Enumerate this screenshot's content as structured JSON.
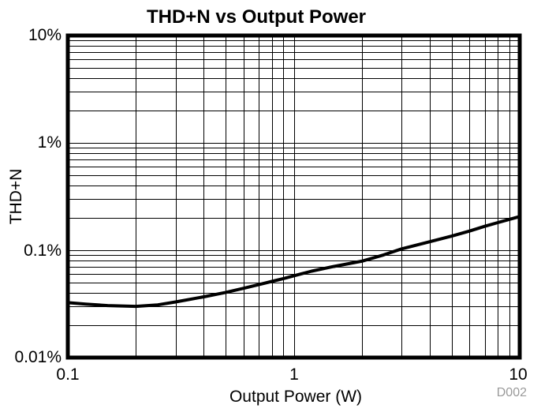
{
  "title": "THD+N vs Output Power",
  "watermark": "D002",
  "colors": {
    "curve": "#000000",
    "grid": "#000000",
    "frame": "#000000",
    "text": "#000000",
    "watermark": "#9a9a9a",
    "background": "#ffffff"
  },
  "chart_data": {
    "type": "line",
    "title": "THD+N vs Output Power",
    "xlabel": "Output Power (W)",
    "ylabel": "THD+N",
    "x_scale": "log",
    "y_scale": "log",
    "xlim": [
      0.1,
      10
    ],
    "ylim": [
      0.01,
      10
    ],
    "y_unit": "percent",
    "grid": "major+minor log grid, both axes, black",
    "legend": "none",
    "annotation": "D002",
    "x_ticks": [
      {
        "value": 0.1,
        "label": "0.1"
      },
      {
        "value": 1,
        "label": "1"
      },
      {
        "value": 10,
        "label": "10"
      }
    ],
    "y_ticks": [
      {
        "value": 10,
        "label": "10%"
      },
      {
        "value": 1,
        "label": "1%"
      },
      {
        "value": 0.1,
        "label": "0.1%"
      },
      {
        "value": 0.01,
        "label": "0.01%"
      }
    ],
    "series": [
      {
        "name": "THD+N",
        "color": "#000000",
        "points": [
          [
            0.1,
            0.0325
          ],
          [
            0.12,
            0.0315
          ],
          [
            0.15,
            0.0305
          ],
          [
            0.2,
            0.03
          ],
          [
            0.25,
            0.031
          ],
          [
            0.3,
            0.033
          ],
          [
            0.4,
            0.0368
          ],
          [
            0.5,
            0.0405
          ],
          [
            0.6,
            0.0442
          ],
          [
            0.7,
            0.0478
          ],
          [
            0.8,
            0.0512
          ],
          [
            0.9,
            0.0545
          ],
          [
            1.0,
            0.0578
          ],
          [
            1.2,
            0.0638
          ],
          [
            1.5,
            0.0705
          ],
          [
            2.0,
            0.079
          ],
          [
            2.5,
            0.0905
          ],
          [
            3.0,
            0.103
          ],
          [
            4.0,
            0.12
          ],
          [
            5.0,
            0.1355
          ],
          [
            6.0,
            0.151
          ],
          [
            7.0,
            0.167
          ],
          [
            8.0,
            0.181
          ],
          [
            10.0,
            0.206
          ]
        ]
      }
    ]
  }
}
